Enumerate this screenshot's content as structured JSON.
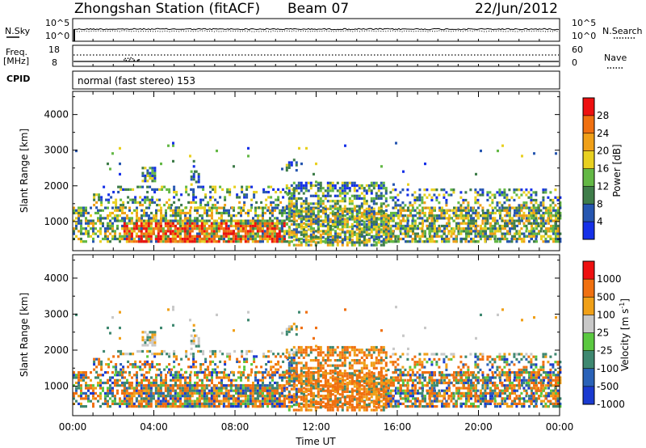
{
  "header": {
    "station": "Zhongshan Station (fitACF)",
    "beam": "Beam 07",
    "date": "22/Jun/2012"
  },
  "status_panels": {
    "nsky_label": "N.Sky",
    "nsky_ticks": [
      "10^5",
      "10^0"
    ],
    "nsearch_label": "N.Search",
    "nsearch_ticks": [
      "10^5",
      "10^0"
    ],
    "freq_label": "Freq.",
    "freq_unit": "[MHz]",
    "freq_ticks": [
      "18",
      "8"
    ],
    "nave_label": "Nave",
    "nave_ticks": [
      "60",
      "0"
    ],
    "cpid_label": "CPID",
    "cpid_text": "normal (fast stereo) 153"
  },
  "chart_data": [
    {
      "type": "heatmap",
      "name": "power-panel",
      "ylabel": "Slant Range [km]",
      "xlim_hours": [
        0,
        24
      ],
      "ylim": [
        180,
        4650
      ],
      "yticks": [
        "4000",
        "3000",
        "2000",
        "1000"
      ],
      "ytick_values": [
        4000,
        3000,
        2000,
        1000
      ],
      "colorbar": {
        "label": "Power [dB]",
        "ticks": [
          "28",
          "24",
          "20",
          "16",
          "12",
          "8",
          "4"
        ],
        "colors": [
          "#1530e8",
          "#2656b0",
          "#3f7d4a",
          "#63b845",
          "#e8d020",
          "#f0a018",
          "#f07010",
          "#ee1010"
        ]
      }
    },
    {
      "type": "heatmap",
      "name": "velocity-panel",
      "ylabel": "Slant Range [km]",
      "xlabel": "Time UT",
      "xlim_hours": [
        0,
        24
      ],
      "ylim": [
        180,
        4650
      ],
      "yticks": [
        "4000",
        "3000",
        "2000",
        "1000"
      ],
      "ytick_values": [
        4000,
        3000,
        2000,
        1000
      ],
      "xticks": [
        "00:00",
        "04:00",
        "08:00",
        "12:00",
        "16:00",
        "20:00",
        "00:00"
      ],
      "xtick_values": [
        0,
        4,
        8,
        12,
        16,
        20,
        24
      ],
      "colorbar": {
        "label": "Velocity [m s",
        "label_sup": "-1",
        "label_end": "]",
        "ticks": [
          "1000",
          "500",
          "100",
          "25",
          "-25",
          "-100",
          "-500",
          "-1000"
        ],
        "colors": [
          "#1a3ad0",
          "#2a62b8",
          "#3e8870",
          "#5ac840",
          "#c8c8c8",
          "#f0a018",
          "#f07010",
          "#ee1010"
        ]
      }
    }
  ]
}
